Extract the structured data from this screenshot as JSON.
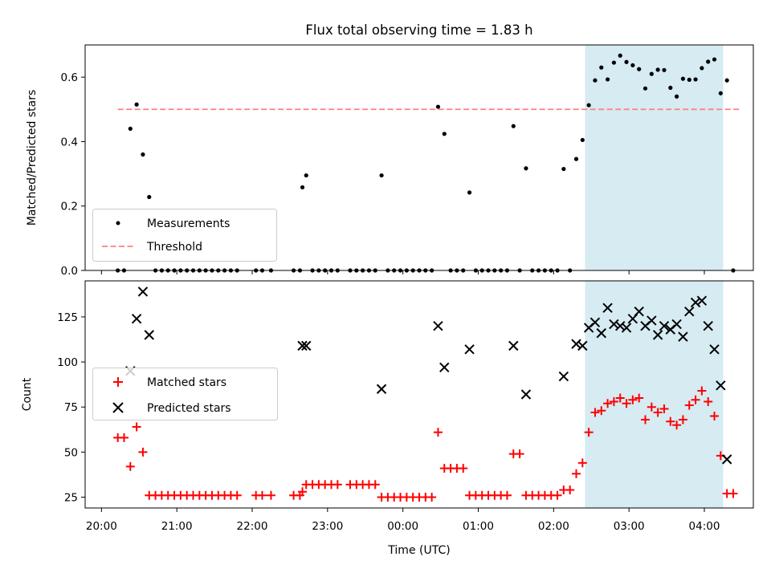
{
  "title": "Flux total observing time = 1.83 h",
  "colors": {
    "measurement": "#000000",
    "threshold": "#ff7f7f",
    "matched": "#ff0000",
    "predicted": "#000000",
    "highlight": "#add8e6"
  },
  "chart_data": [
    {
      "type": "scatter",
      "panel": "top",
      "xlabel": "",
      "ylabel": "Matched/Predicted stars",
      "ylim": [
        0,
        0.7
      ],
      "yticks": [
        "0.0",
        "0.2",
        "0.4",
        "0.6"
      ],
      "highlight_span": [
        "02:25",
        "04:15"
      ],
      "legend": {
        "position": "lower-left",
        "entries": [
          "Measurements",
          "Threshold"
        ]
      },
      "threshold": {
        "name": "Threshold",
        "value": 0.5,
        "x_range": [
          "20:13",
          "04:28"
        ]
      },
      "series": [
        {
          "name": "Measurements",
          "marker": "dot",
          "points": [
            [
              "20:13",
              0
            ],
            [
              "20:18",
              0
            ],
            [
              "20:23",
              0.44
            ],
            [
              "20:28",
              0.515
            ],
            [
              "20:33",
              0.36
            ],
            [
              "20:38",
              0.228
            ],
            [
              "20:43",
              0
            ],
            [
              "20:48",
              0
            ],
            [
              "20:53",
              0
            ],
            [
              "20:58",
              0
            ],
            [
              "21:03",
              0
            ],
            [
              "21:08",
              0
            ],
            [
              "21:13",
              0
            ],
            [
              "21:18",
              0
            ],
            [
              "21:23",
              0
            ],
            [
              "21:28",
              0
            ],
            [
              "21:33",
              0
            ],
            [
              "21:38",
              0
            ],
            [
              "21:43",
              0
            ],
            [
              "21:48",
              0
            ],
            [
              "22:03",
              0
            ],
            [
              "22:08",
              0
            ],
            [
              "22:15",
              0
            ],
            [
              "22:33",
              0
            ],
            [
              "22:38",
              0
            ],
            [
              "22:40",
              0.258
            ],
            [
              "22:43",
              0.295
            ],
            [
              "22:48",
              0
            ],
            [
              "22:53",
              0
            ],
            [
              "22:58",
              0
            ],
            [
              "23:03",
              0
            ],
            [
              "23:08",
              0
            ],
            [
              "23:18",
              0
            ],
            [
              "23:23",
              0
            ],
            [
              "23:28",
              0
            ],
            [
              "23:33",
              0
            ],
            [
              "23:38",
              0
            ],
            [
              "23:43",
              0.295
            ],
            [
              "23:48",
              0
            ],
            [
              "23:53",
              0
            ],
            [
              "23:58",
              0
            ],
            [
              "00:03",
              0
            ],
            [
              "00:08",
              0
            ],
            [
              "00:13",
              0
            ],
            [
              "00:18",
              0
            ],
            [
              "00:23",
              0
            ],
            [
              "00:28",
              0.508
            ],
            [
              "00:33",
              0.424
            ],
            [
              "00:38",
              0
            ],
            [
              "00:43",
              0
            ],
            [
              "00:48",
              0
            ],
            [
              "00:53",
              0.242
            ],
            [
              "00:58",
              0
            ],
            [
              "01:03",
              0
            ],
            [
              "01:08",
              0
            ],
            [
              "01:13",
              0
            ],
            [
              "01:18",
              0
            ],
            [
              "01:23",
              0
            ],
            [
              "01:28",
              0.448
            ],
            [
              "01:33",
              0
            ],
            [
              "01:38",
              0.317
            ],
            [
              "01:43",
              0
            ],
            [
              "01:48",
              0
            ],
            [
              "01:53",
              0
            ],
            [
              "01:58",
              0
            ],
            [
              "02:03",
              0
            ],
            [
              "02:08",
              0.315
            ],
            [
              "02:13",
              0
            ],
            [
              "02:18",
              0.346
            ],
            [
              "02:23",
              0.405
            ],
            [
              "02:28",
              0.513
            ],
            [
              "02:33",
              0.59
            ],
            [
              "02:38",
              0.63
            ],
            [
              "02:43",
              0.593
            ],
            [
              "02:48",
              0.645
            ],
            [
              "02:53",
              0.667
            ],
            [
              "02:58",
              0.647
            ],
            [
              "03:03",
              0.637
            ],
            [
              "03:08",
              0.625
            ],
            [
              "03:13",
              0.565
            ],
            [
              "03:18",
              0.61
            ],
            [
              "03:23",
              0.623
            ],
            [
              "03:28",
              0.622
            ],
            [
              "03:33",
              0.567
            ],
            [
              "03:38",
              0.54
            ],
            [
              "03:43",
              0.595
            ],
            [
              "03:48",
              0.592
            ],
            [
              "03:53",
              0.593
            ],
            [
              "03:58",
              0.628
            ],
            [
              "04:03",
              0.648
            ],
            [
              "04:08",
              0.655
            ],
            [
              "04:13",
              0.55
            ],
            [
              "04:18",
              0.59
            ],
            [
              "04:23",
              0
            ]
          ]
        }
      ]
    },
    {
      "type": "scatter",
      "panel": "bottom",
      "xlabel": "Time (UTC)",
      "ylabel": "Count",
      "ylim": [
        19,
        145
      ],
      "yticks": [
        "25",
        "50",
        "75",
        "100",
        "125"
      ],
      "xticks": [
        "20:00",
        "21:00",
        "22:00",
        "23:00",
        "00:00",
        "01:00",
        "02:00",
        "03:00",
        "04:00"
      ],
      "highlight_span": [
        "02:25",
        "04:15"
      ],
      "legend": {
        "position": "center-left",
        "entries": [
          "Matched stars",
          "Predicted stars"
        ]
      },
      "series": [
        {
          "name": "Matched stars",
          "marker": "plus",
          "points": [
            [
              "20:13",
              58
            ],
            [
              "20:18",
              58
            ],
            [
              "20:23",
              42
            ],
            [
              "20:28",
              64
            ],
            [
              "20:33",
              50
            ],
            [
              "20:38",
              26
            ],
            [
              "20:43",
              26
            ],
            [
              "20:48",
              26
            ],
            [
              "20:53",
              26
            ],
            [
              "20:58",
              26
            ],
            [
              "21:03",
              26
            ],
            [
              "21:08",
              26
            ],
            [
              "21:13",
              26
            ],
            [
              "21:18",
              26
            ],
            [
              "21:23",
              26
            ],
            [
              "21:28",
              26
            ],
            [
              "21:33",
              26
            ],
            [
              "21:38",
              26
            ],
            [
              "21:43",
              26
            ],
            [
              "21:48",
              26
            ],
            [
              "22:03",
              26
            ],
            [
              "22:08",
              26
            ],
            [
              "22:15",
              26
            ],
            [
              "22:33",
              26
            ],
            [
              "22:38",
              26
            ],
            [
              "22:40",
              28
            ],
            [
              "22:43",
              32
            ],
            [
              "22:48",
              32
            ],
            [
              "22:53",
              32
            ],
            [
              "22:58",
              32
            ],
            [
              "23:03",
              32
            ],
            [
              "23:08",
              32
            ],
            [
              "23:18",
              32
            ],
            [
              "23:23",
              32
            ],
            [
              "23:28",
              32
            ],
            [
              "23:33",
              32
            ],
            [
              "23:38",
              32
            ],
            [
              "23:43",
              25
            ],
            [
              "23:48",
              25
            ],
            [
              "23:53",
              25
            ],
            [
              "23:58",
              25
            ],
            [
              "00:03",
              25
            ],
            [
              "00:08",
              25
            ],
            [
              "00:13",
              25
            ],
            [
              "00:18",
              25
            ],
            [
              "00:23",
              25
            ],
            [
              "00:28",
              61
            ],
            [
              "00:33",
              41
            ],
            [
              "00:38",
              41
            ],
            [
              "00:43",
              41
            ],
            [
              "00:48",
              41
            ],
            [
              "00:53",
              26
            ],
            [
              "00:58",
              26
            ],
            [
              "01:03",
              26
            ],
            [
              "01:08",
              26
            ],
            [
              "01:13",
              26
            ],
            [
              "01:18",
              26
            ],
            [
              "01:23",
              26
            ],
            [
              "01:28",
              49
            ],
            [
              "01:33",
              49
            ],
            [
              "01:38",
              26
            ],
            [
              "01:43",
              26
            ],
            [
              "01:48",
              26
            ],
            [
              "01:53",
              26
            ],
            [
              "01:58",
              26
            ],
            [
              "02:03",
              26
            ],
            [
              "02:08",
              29
            ],
            [
              "02:13",
              29
            ],
            [
              "02:18",
              38
            ],
            [
              "02:23",
              44
            ],
            [
              "02:28",
              61
            ],
            [
              "02:33",
              72
            ],
            [
              "02:38",
              73
            ],
            [
              "02:43",
              77
            ],
            [
              "02:48",
              78
            ],
            [
              "02:53",
              80
            ],
            [
              "02:58",
              77
            ],
            [
              "03:03",
              79
            ],
            [
              "03:08",
              80
            ],
            [
              "03:13",
              68
            ],
            [
              "03:18",
              75
            ],
            [
              "03:23",
              72
            ],
            [
              "03:28",
              74
            ],
            [
              "03:33",
              67
            ],
            [
              "03:38",
              65
            ],
            [
              "03:43",
              68
            ],
            [
              "03:48",
              76
            ],
            [
              "03:53",
              79
            ],
            [
              "03:58",
              84
            ],
            [
              "04:03",
              78
            ],
            [
              "04:08",
              70
            ],
            [
              "04:13",
              48
            ],
            [
              "04:18",
              27
            ],
            [
              "04:23",
              27
            ]
          ]
        },
        {
          "name": "Predicted stars",
          "marker": "x",
          "points": [
            [
              "20:23",
              95
            ],
            [
              "20:28",
              124
            ],
            [
              "20:33",
              139
            ],
            [
              "20:38",
              115
            ],
            [
              "22:40",
              109
            ],
            [
              "22:43",
              109
            ],
            [
              "23:43",
              85
            ],
            [
              "00:28",
              120
            ],
            [
              "00:33",
              97
            ],
            [
              "00:53",
              107
            ],
            [
              "01:28",
              109
            ],
            [
              "01:38",
              82
            ],
            [
              "02:08",
              92
            ],
            [
              "02:18",
              110
            ],
            [
              "02:23",
              109
            ],
            [
              "02:28",
              119
            ],
            [
              "02:33",
              122
            ],
            [
              "02:38",
              116
            ],
            [
              "02:43",
              130
            ],
            [
              "02:48",
              121
            ],
            [
              "02:53",
              120
            ],
            [
              "02:58",
              119
            ],
            [
              "03:03",
              124
            ],
            [
              "03:08",
              128
            ],
            [
              "03:13",
              120
            ],
            [
              "03:18",
              123
            ],
            [
              "03:23",
              115
            ],
            [
              "03:28",
              120
            ],
            [
              "03:33",
              118
            ],
            [
              "03:38",
              121
            ],
            [
              "03:43",
              114
            ],
            [
              "03:48",
              128
            ],
            [
              "03:53",
              133
            ],
            [
              "03:58",
              134
            ],
            [
              "04:03",
              120
            ],
            [
              "04:08",
              107
            ],
            [
              "04:13",
              87
            ],
            [
              "04:18",
              46
            ]
          ]
        }
      ]
    }
  ]
}
